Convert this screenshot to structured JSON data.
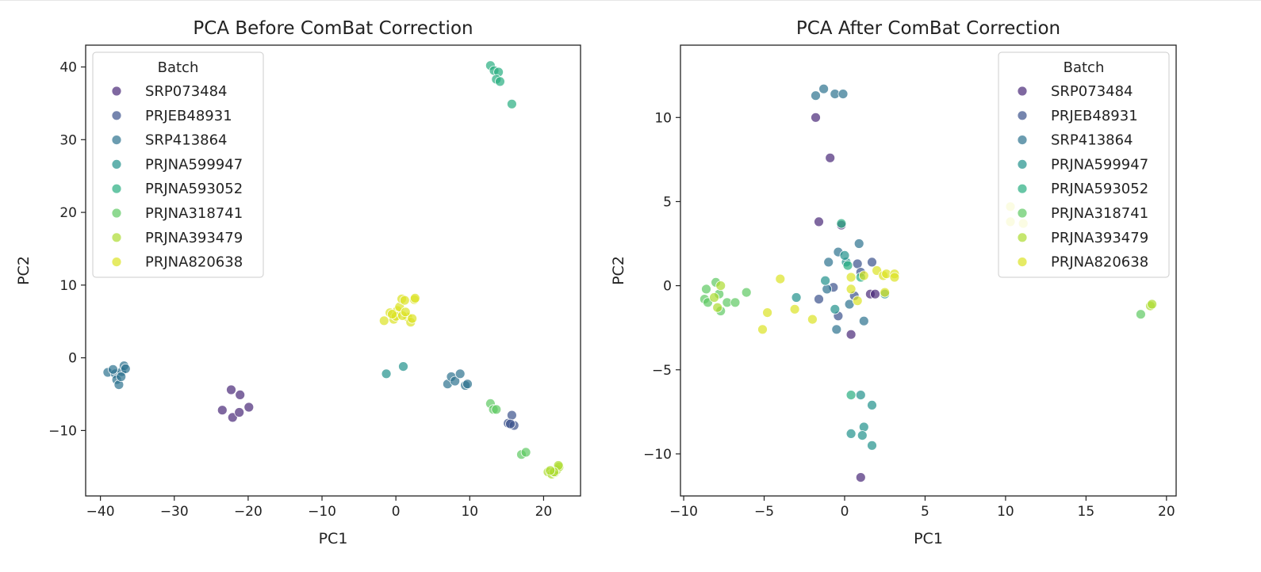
{
  "figure": {
    "legend_title": "Batch"
  },
  "chart_data": [
    {
      "type": "scatter",
      "title": "PCA Before ComBat Correction",
      "xlabel": "PC1",
      "ylabel": "PC2",
      "xlim": [
        -42,
        25
      ],
      "ylim": [
        -19,
        43
      ],
      "xticks": [
        -40,
        -30,
        -20,
        -10,
        0,
        10,
        20
      ],
      "yticks": [
        -10,
        0,
        10,
        20,
        30,
        40
      ],
      "xtick_labels": [
        "−40",
        "−30",
        "−20",
        "−10",
        "0",
        "10",
        "20"
      ],
      "ytick_labels": [
        "−10",
        "0",
        "10",
        "20",
        "30",
        "40"
      ],
      "grid": false,
      "legend_position": "upper-left",
      "legend_title": "Batch",
      "series": [
        {
          "name": "SRP073484",
          "color": "#482878",
          "points": [
            [
              -23.5,
              -7.2
            ],
            [
              -22.3,
              -4.4
            ],
            [
              -22.1,
              -8.2
            ],
            [
              -21.1,
              -5.1
            ],
            [
              -21.2,
              -7.5
            ],
            [
              -19.9,
              -6.8
            ]
          ]
        },
        {
          "name": "PRJEB48931",
          "color": "#3b518b",
          "points": [
            [
              15.2,
              -9.0
            ],
            [
              15.7,
              -7.9
            ],
            [
              16.0,
              -9.3
            ],
            [
              15.5,
              -9.1
            ]
          ]
        },
        {
          "name": "SRP413864",
          "color": "#2c728e",
          "points": [
            [
              -39.0,
              -2.0
            ],
            [
              -38.0,
              -2.2
            ],
            [
              -37.8,
              -3.0
            ],
            [
              -37.5,
              -3.7
            ],
            [
              -37.1,
              -1.9
            ],
            [
              -36.8,
              -1.1
            ],
            [
              -36.6,
              -1.5
            ],
            [
              -38.3,
              -1.6
            ],
            [
              -37.2,
              -2.6
            ],
            [
              7.0,
              -3.6
            ],
            [
              7.5,
              -2.6
            ],
            [
              8.0,
              -3.2
            ],
            [
              8.7,
              -2.2
            ],
            [
              9.4,
              -3.8
            ],
            [
              9.7,
              -3.6
            ]
          ]
        },
        {
          "name": "PRJNA599947",
          "color": "#21918c",
          "points": [
            [
              -1.3,
              -2.2
            ],
            [
              1.0,
              -1.2
            ]
          ]
        },
        {
          "name": "PRJNA593052",
          "color": "#28ae80",
          "points": [
            [
              12.8,
              40.2
            ],
            [
              13.3,
              39.5
            ],
            [
              13.9,
              39.3
            ],
            [
              13.6,
              38.3
            ],
            [
              14.1,
              38.0
            ],
            [
              15.7,
              34.9
            ]
          ]
        },
        {
          "name": "PRJNA318741",
          "color": "#5ec962",
          "points": [
            [
              12.8,
              -6.3
            ],
            [
              13.2,
              -7.1
            ],
            [
              13.6,
              -7.1
            ],
            [
              17.0,
              -13.3
            ],
            [
              17.6,
              -13.0
            ]
          ]
        },
        {
          "name": "PRJNA393479",
          "color": "#addc30",
          "points": [
            [
              20.6,
              -15.7
            ],
            [
              21.1,
              -16.0
            ],
            [
              21.5,
              -15.8
            ],
            [
              21.8,
              -15.4
            ],
            [
              22.1,
              -15.0
            ],
            [
              22.0,
              -14.8
            ],
            [
              21.4,
              -15.7
            ],
            [
              20.9,
              -15.5
            ]
          ]
        },
        {
          "name": "PRJNA820638",
          "color": "#dbe324",
          "points": [
            [
              -1.6,
              5.1
            ],
            [
              -0.8,
              6.2
            ],
            [
              -0.3,
              5.3
            ],
            [
              0.2,
              6.5
            ],
            [
              0.5,
              7.0
            ],
            [
              0.8,
              8.1
            ],
            [
              1.2,
              7.9
            ],
            [
              1.6,
              5.6
            ],
            [
              2.0,
              4.9
            ],
            [
              2.2,
              5.4
            ],
            [
              2.5,
              8.0
            ],
            [
              2.6,
              8.2
            ],
            [
              0.0,
              5.7
            ],
            [
              0.9,
              5.8
            ],
            [
              -0.5,
              6.0
            ],
            [
              1.3,
              6.3
            ]
          ]
        }
      ]
    },
    {
      "type": "scatter",
      "title": "PCA After ComBat Correction",
      "xlabel": "PC1",
      "ylabel": "PC2",
      "xlim": [
        -10.2,
        20.6
      ],
      "ylim": [
        -12.5,
        14.3
      ],
      "xticks": [
        -10,
        -5,
        0,
        5,
        10,
        15,
        20
      ],
      "yticks": [
        -10,
        -5,
        0,
        5,
        10
      ],
      "xtick_labels": [
        "−10",
        "−5",
        "0",
        "5",
        "10",
        "15",
        "20"
      ],
      "ytick_labels": [
        "−10",
        "−5",
        "0",
        "5",
        "10"
      ],
      "grid": false,
      "legend_position": "upper-right",
      "legend_title": "Batch",
      "series": [
        {
          "name": "SRP073484",
          "color": "#482878",
          "points": [
            [
              -1.8,
              10.0
            ],
            [
              -0.9,
              7.6
            ],
            [
              -1.6,
              3.8
            ],
            [
              0.4,
              -2.9
            ],
            [
              1.0,
              -11.4
            ],
            [
              1.6,
              -0.5
            ],
            [
              1.9,
              -0.5
            ],
            [
              -0.2,
              3.6
            ]
          ]
        },
        {
          "name": "PRJEB48931",
          "color": "#3b518b",
          "points": [
            [
              -1.6,
              -0.8
            ],
            [
              -0.7,
              -0.1
            ],
            [
              -0.4,
              -1.8
            ],
            [
              0.8,
              1.3
            ],
            [
              1.7,
              1.4
            ],
            [
              0.6,
              -0.6
            ],
            [
              1.0,
              0.8
            ]
          ]
        },
        {
          "name": "SRP413864",
          "color": "#2c728e",
          "points": [
            [
              -1.8,
              11.3
            ],
            [
              -1.3,
              11.7
            ],
            [
              -0.6,
              11.4
            ],
            [
              -0.1,
              11.4
            ],
            [
              -1.1,
              -0.2
            ],
            [
              -0.5,
              -2.6
            ],
            [
              0.9,
              2.5
            ],
            [
              1.2,
              -2.1
            ],
            [
              0.3,
              -1.1
            ],
            [
              -0.4,
              2.0
            ],
            [
              -1.0,
              1.4
            ]
          ]
        },
        {
          "name": "PRJNA599947",
          "color": "#21918c",
          "points": [
            [
              0.4,
              -8.8
            ],
            [
              1.0,
              -6.5
            ],
            [
              1.2,
              -8.4
            ],
            [
              1.1,
              -8.9
            ],
            [
              1.7,
              -7.1
            ],
            [
              1.7,
              -9.5
            ],
            [
              -3.0,
              -0.7
            ],
            [
              -1.2,
              0.3
            ],
            [
              -0.6,
              -1.4
            ],
            [
              0.1,
              1.4
            ],
            [
              0.0,
              1.8
            ],
            [
              2.5,
              -0.5
            ]
          ]
        },
        {
          "name": "PRJNA593052",
          "color": "#28ae80",
          "points": [
            [
              0.4,
              -6.5
            ],
            [
              -0.2,
              3.7
            ],
            [
              0.2,
              1.2
            ],
            [
              1.0,
              0.5
            ]
          ]
        },
        {
          "name": "PRJNA318741",
          "color": "#5ec962",
          "points": [
            [
              -8.7,
              -0.8
            ],
            [
              -8.5,
              -1.0
            ],
            [
              -8.6,
              -0.2
            ],
            [
              -8.0,
              0.2
            ],
            [
              -7.8,
              -0.5
            ],
            [
              -7.7,
              -1.5
            ],
            [
              -7.3,
              -1.0
            ],
            [
              -6.8,
              -1.0
            ],
            [
              -6.1,
              -0.4
            ],
            [
              18.4,
              -1.7
            ]
          ]
        },
        {
          "name": "PRJNA393479",
          "color": "#addc30",
          "points": [
            [
              -7.9,
              -1.3
            ],
            [
              -7.7,
              0.0
            ],
            [
              19.0,
              -1.2
            ],
            [
              19.1,
              -1.1
            ],
            [
              -8.1,
              -0.7
            ]
          ]
        },
        {
          "name": "PRJNA820638",
          "color": "#dbe324",
          "points": [
            [
              -5.1,
              -2.6
            ],
            [
              -4.8,
              -1.6
            ],
            [
              -4.0,
              0.4
            ],
            [
              -3.1,
              -1.4
            ],
            [
              -2.0,
              -2.0
            ],
            [
              0.4,
              0.5
            ],
            [
              0.4,
              -0.2
            ],
            [
              0.8,
              -0.9
            ],
            [
              1.2,
              0.6
            ],
            [
              2.0,
              0.9
            ],
            [
              2.4,
              0.6
            ],
            [
              2.6,
              0.7
            ],
            [
              2.5,
              -0.4
            ],
            [
              3.1,
              0.7
            ],
            [
              3.1,
              0.5
            ],
            [
              10.3,
              4.7
            ],
            [
              10.3,
              3.8
            ],
            [
              11.1,
              3.7
            ]
          ]
        }
      ]
    }
  ]
}
